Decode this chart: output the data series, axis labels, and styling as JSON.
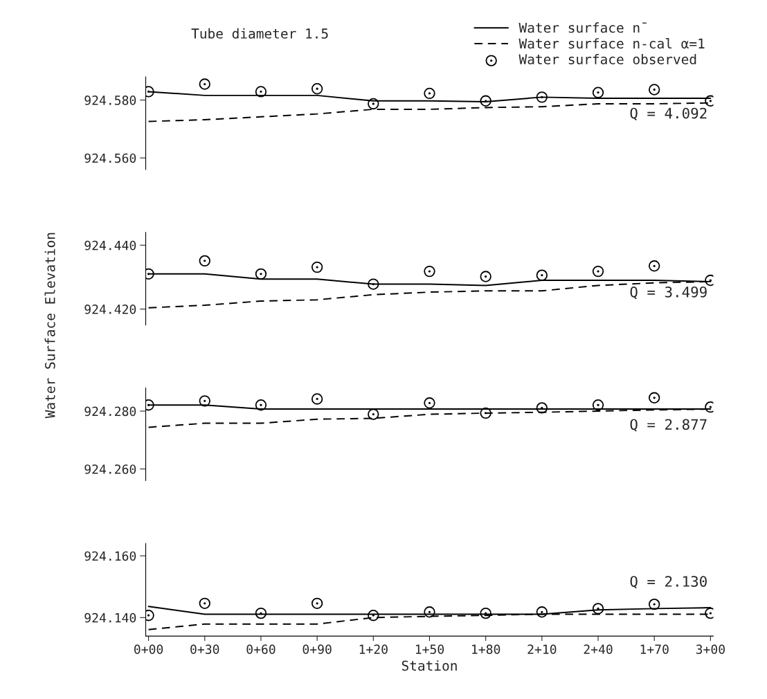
{
  "chart_data": [
    {
      "type": "line",
      "title": "Tube diameter 1.5",
      "ylim": [
        924.556,
        924.588
      ],
      "yticks": [
        {
          "value": 924.56,
          "label": "924.560"
        },
        {
          "value": 924.58,
          "label": "924.580"
        }
      ],
      "tick_labels": "y",
      "legend": "top right",
      "grid": false,
      "annotations": [
        "Q = 4.092"
      ],
      "series": [
        {
          "name": "Water surface n̄",
          "color": "#000000",
          "line_style": "solid",
          "marker": "none",
          "values": [
            924.5829,
            924.5816,
            924.5816,
            924.5816,
            924.5797,
            924.5797,
            924.5794,
            924.581,
            924.5806,
            924.5806,
            924.5806
          ]
        },
        {
          "name": "Water surface n-cal α=1",
          "color": "#000000",
          "line_style": "dashed",
          "marker": "none",
          "values": [
            924.5726,
            924.5732,
            924.5742,
            924.5752,
            924.5768,
            924.5768,
            924.5774,
            924.5777,
            924.5787,
            924.5787,
            924.579
          ]
        },
        {
          "name": "Water surface observed",
          "type": "scatter",
          "color": "#000000",
          "marker": "circle",
          "values": [
            924.5829,
            924.5855,
            924.5829,
            924.5839,
            924.5787,
            924.5823,
            924.5797,
            924.581,
            924.5826,
            924.5836,
            924.5797
          ]
        }
      ]
    },
    {
      "type": "line",
      "ylabel": "Water Surface Elevation",
      "ylim": [
        924.415,
        924.444
      ],
      "yticks": [
        {
          "value": 924.42,
          "label": "924.420"
        },
        {
          "value": 924.44,
          "label": "924.440"
        }
      ],
      "tick_labels": "y",
      "grid": false,
      "annotations": [
        "Q = 3.499"
      ],
      "series": [
        {
          "color": "#000000",
          "line_style": "solid",
          "marker": "none",
          "values": [
            924.431,
            924.431,
            924.4294,
            924.4294,
            924.4278,
            924.4278,
            924.4274,
            924.429,
            924.429,
            924.429,
            924.4286
          ]
        },
        {
          "color": "#000000",
          "line_style": "dashed",
          "marker": "none",
          "values": [
            924.4204,
            924.4212,
            924.4225,
            924.4229,
            924.4245,
            924.4253,
            924.4257,
            924.4257,
            924.4274,
            924.4282,
            924.4286
          ]
        },
        {
          "type": "scatter",
          "color": "#000000",
          "marker": "circle",
          "values": [
            924.431,
            924.4351,
            924.431,
            924.4331,
            924.4278,
            924.4318,
            924.4302,
            924.4306,
            924.4318,
            924.4335,
            924.429
          ]
        }
      ]
    },
    {
      "type": "line",
      "ylim": [
        924.256,
        924.288
      ],
      "yticks": [
        {
          "value": 924.26,
          "label": "924.260"
        },
        {
          "value": 924.28,
          "label": "924.280"
        }
      ],
      "tick_labels": "y",
      "grid": false,
      "annotations": [
        "Q = 2.877"
      ],
      "series": [
        {
          "color": "#000000",
          "line_style": "solid",
          "marker": "none",
          "values": [
            924.2821,
            924.2821,
            924.2807,
            924.2807,
            924.2807,
            924.2807,
            924.2807,
            924.2807,
            924.2807,
            924.2807,
            924.2807
          ]
        },
        {
          "color": "#000000",
          "line_style": "dashed",
          "marker": "none",
          "values": [
            924.2744,
            924.2758,
            924.2758,
            924.2772,
            924.2775,
            924.2789,
            924.2793,
            924.2796,
            924.28,
            924.2804,
            924.2807
          ]
        },
        {
          "type": "scatter",
          "color": "#000000",
          "marker": "circle",
          "values": [
            924.2821,
            924.2835,
            924.2821,
            924.2842,
            924.2789,
            924.2828,
            924.2793,
            924.2811,
            924.2821,
            924.2846,
            924.2814
          ]
        }
      ]
    },
    {
      "type": "line",
      "xlabel": "Station",
      "categories": [
        "0+00",
        "0+30",
        "0+60",
        "0+90",
        "1+20",
        "1+50",
        "1+80",
        "2+10",
        "2+40",
        "1+70",
        "3+00"
      ],
      "ylim": [
        924.134,
        924.164
      ],
      "yticks": [
        {
          "value": 924.14,
          "label": "924.140"
        },
        {
          "value": 924.16,
          "label": "924.160"
        }
      ],
      "grid": false,
      "annotations": [
        "Q = 2.130"
      ],
      "series": [
        {
          "color": "#000000",
          "line_style": "solid",
          "marker": "none",
          "values": [
            924.1436,
            924.1411,
            924.1411,
            924.1411,
            924.1411,
            924.1411,
            924.1411,
            924.1411,
            924.1425,
            924.1429,
            924.1432
          ]
        },
        {
          "color": "#000000",
          "line_style": "dashed",
          "marker": "none",
          "values": [
            924.1361,
            924.1379,
            924.1379,
            924.1379,
            924.14,
            924.1404,
            924.1407,
            924.1411,
            924.1411,
            924.1411,
            924.1411
          ]
        },
        {
          "type": "scatter",
          "color": "#000000",
          "marker": "circle",
          "values": [
            924.1407,
            924.1446,
            924.1414,
            924.1446,
            924.1407,
            924.1418,
            924.1414,
            924.1418,
            924.1429,
            924.1443,
            924.1414
          ]
        }
      ]
    }
  ]
}
